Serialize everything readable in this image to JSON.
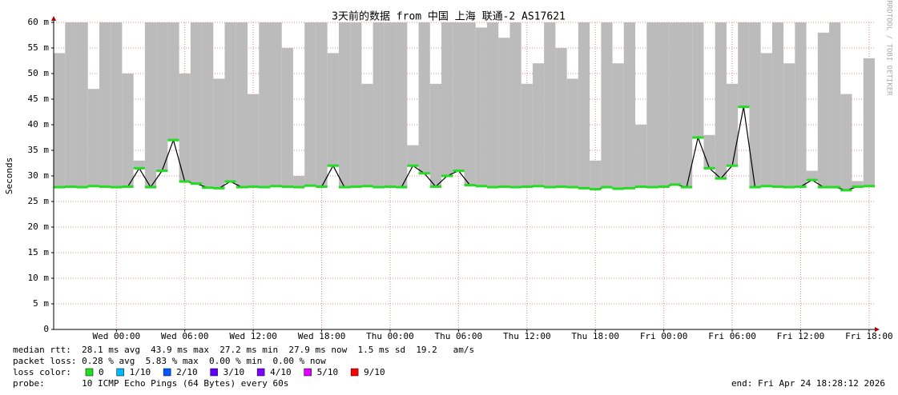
{
  "chart_data": {
    "type": "smokeping",
    "title": "3天前的数据 from 中国 上海 联通-2 AS17621",
    "y_label": "Seconds",
    "watermark": "RRDTOOL / TOBI OETIKER",
    "xlim": [
      -5.5,
      66.5
    ],
    "xticks": [
      {
        "value": 0,
        "label": "Wed 00:00"
      },
      {
        "value": 6,
        "label": "Wed 06:00"
      },
      {
        "value": 12,
        "label": "Wed 12:00"
      },
      {
        "value": 18,
        "label": "Wed 18:00"
      },
      {
        "value": 24,
        "label": "Thu 00:00"
      },
      {
        "value": 30,
        "label": "Thu 06:00"
      },
      {
        "value": 36,
        "label": "Thu 12:00"
      },
      {
        "value": 42,
        "label": "Thu 18:00"
      },
      {
        "value": 48,
        "label": "Fri 00:00"
      },
      {
        "value": 54,
        "label": "Fri 06:00"
      },
      {
        "value": 60,
        "label": "Fri 12:00"
      },
      {
        "value": 66,
        "label": "Fri 18:00"
      }
    ],
    "ylim": [
      0,
      60
    ],
    "yticks": [
      0,
      {
        "value": 5,
        "label": "5 m"
      },
      {
        "value": 10,
        "label": "10 m"
      },
      {
        "value": 15,
        "label": "15 m"
      },
      {
        "value": 20,
        "label": "20 m"
      },
      {
        "value": 25,
        "label": "25 m"
      },
      {
        "value": 30,
        "label": "30 m"
      },
      {
        "value": 35,
        "label": "35 m"
      },
      {
        "value": 40,
        "label": "40 m"
      },
      {
        "value": 45,
        "label": "45 m"
      },
      {
        "value": 50,
        "label": "50 m"
      },
      {
        "value": 55,
        "label": "55 m"
      },
      {
        "value": 60,
        "label": "60 m"
      }
    ],
    "grid": true,
    "x": [
      -5,
      -4,
      -3,
      -2,
      -1,
      0,
      1,
      2,
      3,
      4,
      5,
      6,
      7,
      8,
      9,
      10,
      11,
      12,
      13,
      14,
      15,
      16,
      17,
      18,
      19,
      20,
      21,
      22,
      23,
      24,
      25,
      26,
      27,
      28,
      29,
      30,
      31,
      32,
      33,
      34,
      35,
      36,
      37,
      38,
      39,
      40,
      41,
      42,
      43,
      44,
      45,
      46,
      47,
      48,
      49,
      50,
      51,
      52,
      53,
      54,
      55,
      56,
      57,
      58,
      59,
      60,
      61,
      62,
      63,
      64,
      65,
      66
    ],
    "series": [
      {
        "color": "#bbbbbb",
        "values": [
          54,
          60,
          60,
          47,
          60,
          60,
          50,
          33,
          60,
          60,
          60,
          50,
          60,
          60,
          49,
          60,
          60,
          46,
          60,
          60,
          55,
          30,
          60,
          60,
          54,
          60,
          60,
          48,
          60,
          60,
          60,
          36,
          60,
          48,
          60,
          60,
          60,
          59,
          60,
          57,
          60,
          48,
          52,
          60,
          55,
          49,
          60,
          33,
          60,
          52,
          60,
          40,
          60,
          60,
          60,
          60,
          60,
          38,
          60,
          48,
          60,
          60,
          54,
          60,
          52,
          60,
          31,
          58,
          60,
          46,
          29,
          53
        ]
      },
      {
        "color": "#000000",
        "values": [
          27.8,
          27.9,
          27.8,
          28.0,
          27.9,
          27.8,
          27.9,
          31.5,
          27.8,
          31,
          37,
          28.9,
          28.5,
          27.7,
          27.6,
          28.9,
          27.8,
          27.9,
          27.8,
          28.0,
          27.9,
          27.8,
          28.1,
          27.9,
          32,
          27.8,
          27.9,
          28.0,
          27.8,
          27.9,
          27.8,
          32,
          30.5,
          27.9,
          30,
          31,
          28.2,
          28.0,
          27.8,
          27.9,
          27.8,
          27.9,
          28.0,
          27.8,
          27.9,
          27.8,
          27.6,
          27.4,
          27.8,
          27.5,
          27.6,
          27.9,
          27.8,
          27.9,
          28.3,
          27.8,
          37.5,
          31.5,
          29.5,
          32,
          43.5,
          27.8,
          28.0,
          27.9,
          27.8,
          27.9,
          29.2,
          27.8,
          27.8,
          27.2,
          27.9,
          28.0
        ]
      }
    ],
    "point_color": "#22dd22",
    "stats": [
      "median rtt:  28.1 ms avg  43.9 ms max  27.2 ms min  27.9 ms now  1.5 ms sd  19.2   am/s",
      "packet loss: 0.28 % avg  5.83 % max  0.00 % min  0.00 % now"
    ],
    "legend_title": "loss color:",
    "legend": [
      {
        "label": "0",
        "color": "#22dd22"
      },
      {
        "label": "1/10",
        "color": "#00b8ff"
      },
      {
        "label": "2/10",
        "color": "#0059ff"
      },
      {
        "label": "3/10",
        "color": "#5e00ff"
      },
      {
        "label": "4/10",
        "color": "#7e00ff"
      },
      {
        "label": "5/10",
        "color": "#dd00ff"
      },
      {
        "label": "9/10",
        "color": "#ff0000"
      }
    ],
    "probe": "probe:       10 ICMP Echo Pings (64 Bytes) every 60s",
    "end": "end: Fri Apr 24 18:28:12 2026"
  }
}
